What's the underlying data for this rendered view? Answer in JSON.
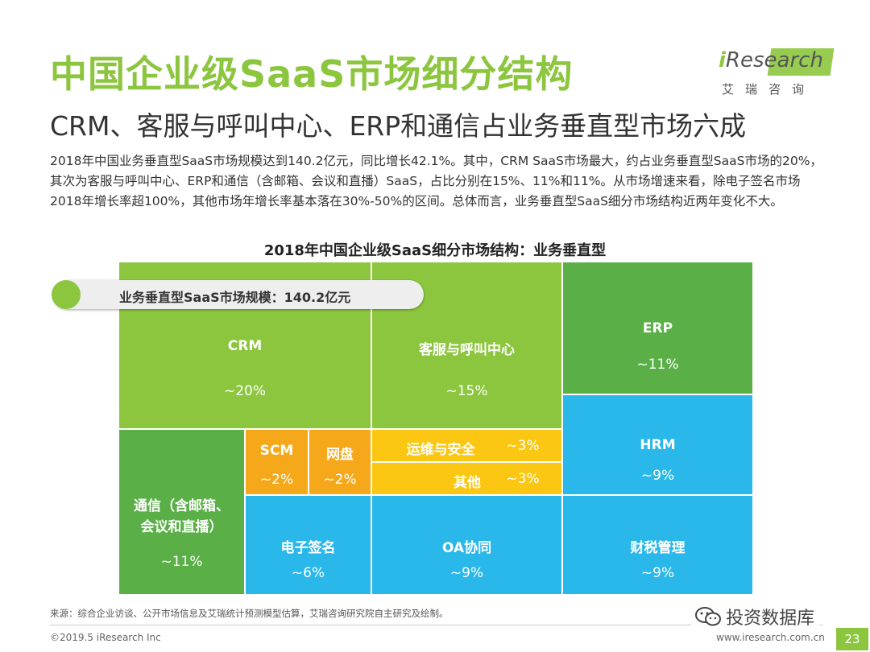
{
  "header": {
    "title": "中国企业级SaaS市场细分结构",
    "subtitle": "CRM、客服与呼叫中心、ERP和通信占业务垂直型市场六成"
  },
  "logo": {
    "i": "i",
    "name": "Research",
    "cn": "艾瑞咨询"
  },
  "summary": "2018年中国业务垂直型SaaS市场规模达到140.2亿元，同比增长42.1%。其中，CRM SaaS市场最大，约占业务垂直型SaaS市场的20%，其次为客服与呼叫中心、ERP和通信（含邮箱、会议和直播）SaaS，占比分别在15%、11%和11%。从市场增速来看，除电子签名市场2018年增长率超100%，其他市场年增长率基本落在30%-50%的区间。总体而言，业务垂直型SaaS细分市场结构近两年变化不大。",
  "market_size_label": "业务垂直型SaaS市场规模：140.2亿元",
  "chart_data": {
    "type": "treemap",
    "title": "2018年中国企业级SaaS细分市场结构：业务垂直型",
    "total": "140.2亿元",
    "segments": [
      {
        "name": "CRM",
        "value_label": "~20%",
        "value": 20,
        "color": "#8cc63e"
      },
      {
        "name": "客服与呼叫中心",
        "value_label": "~15%",
        "value": 15,
        "color": "#8cc63e"
      },
      {
        "name": "ERP",
        "value_label": "~11%",
        "value": 11,
        "color": "#5aaf47"
      },
      {
        "name": "HRM",
        "value_label": "~9%",
        "value": 9,
        "color": "#2ab8ea"
      },
      {
        "name": "通信（含邮箱、会议和直播）",
        "name_line1": "通信（含邮箱、",
        "name_line2": "会议和直播）",
        "value_label": "~11%",
        "value": 11,
        "color": "#5aaf47"
      },
      {
        "name": "SCM",
        "value_label": "~2%",
        "value": 2,
        "color": "#f6a81b"
      },
      {
        "name": "网盘",
        "value_label": "~2%",
        "value": 2,
        "color": "#f6a81b"
      },
      {
        "name": "运维与安全",
        "value_label": "~3%",
        "value": 3,
        "color": "#fbc712"
      },
      {
        "name": "其他",
        "value_label": "~3%",
        "value": 3,
        "color": "#fbc712"
      },
      {
        "name": "电子签名",
        "value_label": "~6%",
        "value": 6,
        "color": "#2ab8ea"
      },
      {
        "name": "OA协同",
        "value_label": "~9%",
        "value": 9,
        "color": "#2ab8ea"
      },
      {
        "name": "财税管理",
        "value_label": "~9%",
        "value": 9,
        "color": "#2ab8ea"
      }
    ]
  },
  "footer": {
    "source": "来源：综合企业访谈、公开市场信息及艾瑞统计预测模型估算，艾瑞咨询研究院自主研究及绘制。",
    "copyright": "©2019.5 iResearch Inc",
    "website": "www.iresearch.com.cn",
    "page": "23",
    "watermark": "投资数据库"
  }
}
